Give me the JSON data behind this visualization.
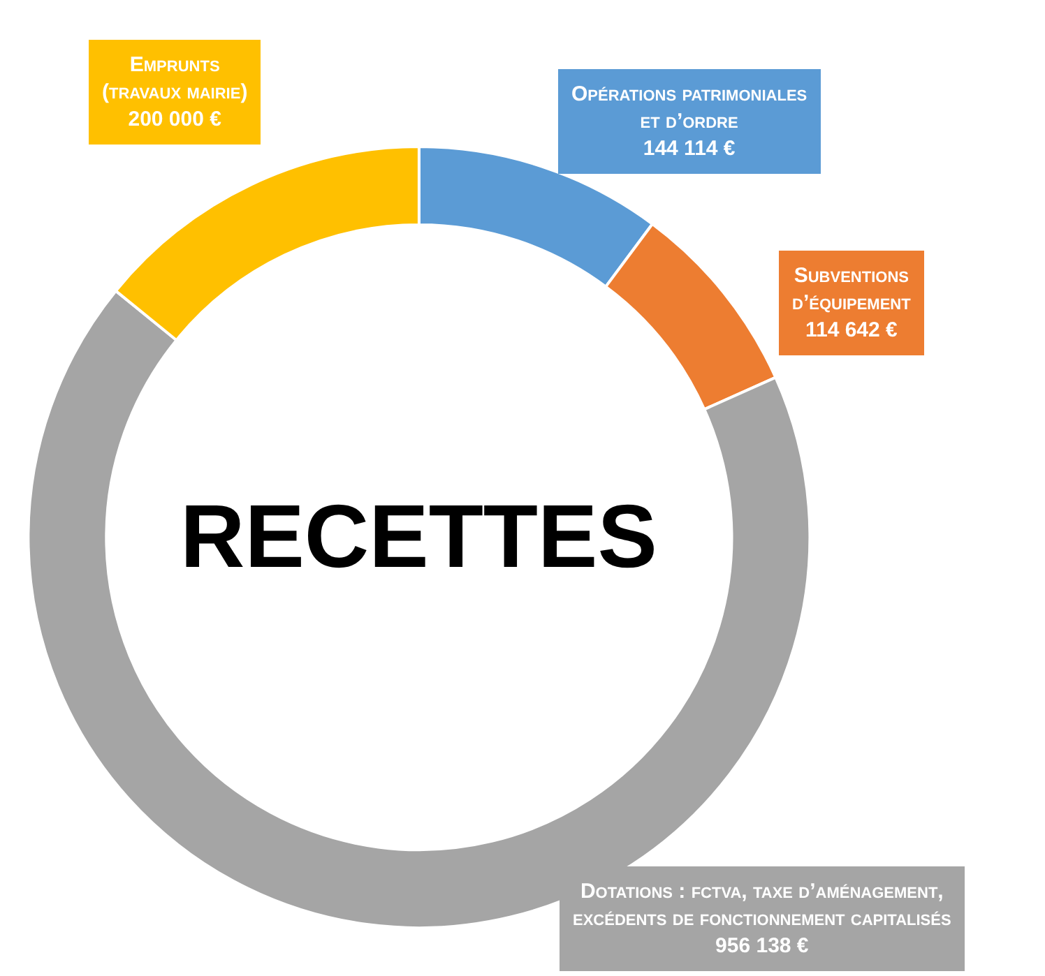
{
  "chart_data": {
    "type": "donut",
    "title": "RECETTES",
    "categories": [
      "Opérations patrimoniales et d’ordre",
      "Subventions d’équipement",
      "Dotations : fctva, taxe d’aménagement, excédents de fonctionnement capitalisés",
      "Emprunts (travaux mairie)"
    ],
    "values": [
      144114,
      114642,
      956138,
      200000
    ],
    "value_labels": [
      "144 114 €",
      "114 642 €",
      "956 138 €",
      "200 000 €"
    ],
    "colors": [
      "#5b9bd5",
      "#ed7d31",
      "#a5a5a5",
      "#ffc000"
    ]
  }
}
